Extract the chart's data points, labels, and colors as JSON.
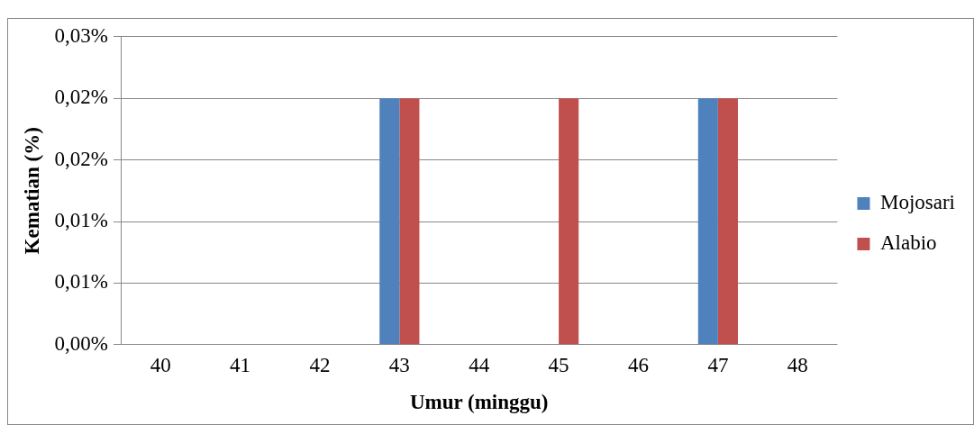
{
  "chart_data": {
    "type": "bar",
    "xlabel": "Umur (minggu)",
    "ylabel": "Kematian (%)",
    "categories": [
      "40",
      "41",
      "42",
      "43",
      "44",
      "45",
      "46",
      "47",
      "48"
    ],
    "series": [
      {
        "name": "Mojosari",
        "color": "#4f81bd",
        "values": [
          0,
          0,
          0,
          0.02,
          0,
          0,
          0,
          0.02,
          0
        ]
      },
      {
        "name": "Alabio",
        "color": "#c0504d",
        "values": [
          0,
          0,
          0,
          0.02,
          0,
          0.02,
          0,
          0.02,
          0
        ]
      }
    ],
    "ylim": [
      0,
      0.025
    ],
    "yticks": [
      {
        "value": 0,
        "label": "0,00%"
      },
      {
        "value": 0.005,
        "label": "0,01%"
      },
      {
        "value": 0.01,
        "label": "0,01%"
      },
      {
        "value": 0.015,
        "label": "0,02%"
      },
      {
        "value": 0.02,
        "label": "0,02%"
      },
      {
        "value": 0.025,
        "label": "0,03%"
      }
    ],
    "grid": "y",
    "legend": "right"
  }
}
